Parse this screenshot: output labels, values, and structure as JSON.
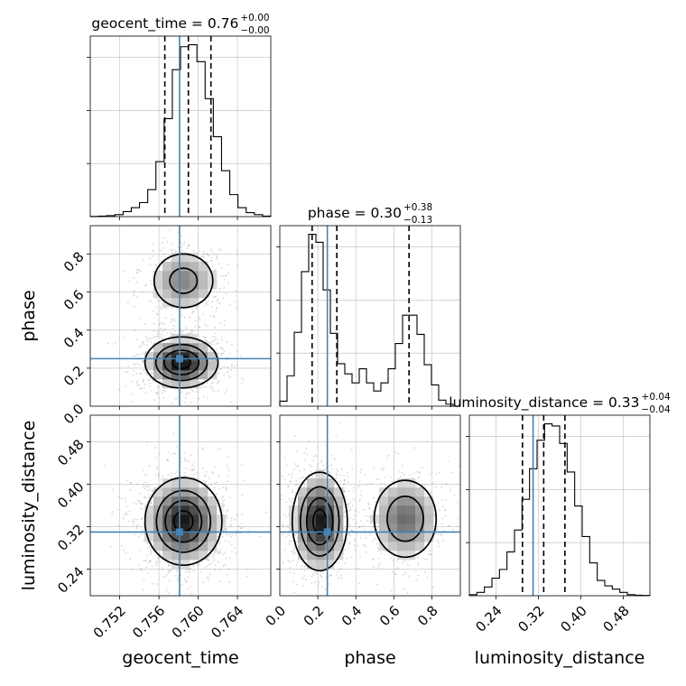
{
  "chart_data": {
    "type": "corner",
    "parameters": [
      "geocent_time",
      "phase",
      "luminosity_distance"
    ],
    "truths": {
      "geocent_time": 0.7581,
      "phase": 0.25,
      "luminosity_distance": 0.31
    },
    "histograms": [
      {
        "param": "geocent_time",
        "title_base": "geocent_time = 0.76",
        "title_sup": "+0.00",
        "title_sub": "−0.00",
        "range": [
          0.749,
          0.7674
        ],
        "quantiles": [
          0.7566,
          0.759,
          0.7613
        ],
        "counts": [
          0.2,
          0.5,
          1,
          2,
          5,
          9,
          14,
          27,
          55,
          98,
          147,
          170,
          172,
          155,
          118,
          80,
          46,
          22,
          9,
          4,
          2,
          0.5
        ]
      },
      {
        "param": "phase",
        "title_base": "phase = 0.30",
        "title_sup": "+0.38",
        "title_sub": "−0.13",
        "range": [
          0.0,
          0.95
        ],
        "quantiles": [
          0.17,
          0.3,
          0.68
        ],
        "counts": [
          5,
          30,
          73,
          133,
          170,
          162,
          115,
          72,
          42,
          32,
          23,
          37,
          23,
          15,
          23,
          37,
          62,
          90,
          90,
          71,
          41,
          21,
          6,
          2,
          0
        ]
      },
      {
        "param": "luminosity_distance",
        "title_base": "luminosity_distance = 0.33",
        "title_sup": "+0.04",
        "title_sub": "−0.04",
        "range": [
          0.19,
          0.53
        ],
        "quantiles": [
          0.29,
          0.33,
          0.37
        ],
        "counts": [
          1,
          3,
          8,
          16,
          24,
          40,
          60,
          88,
          116,
          142,
          157,
          155,
          139,
          113,
          82,
          54,
          30,
          14,
          9,
          6,
          3,
          1,
          0.5,
          0.3
        ]
      }
    ],
    "axes": {
      "geocent_time": {
        "ticks": [
          "0.752",
          "0.756",
          "0.760",
          "0.764"
        ],
        "tick_values": [
          0.752,
          0.756,
          0.76,
          0.764
        ]
      },
      "phase": {
        "ticks": [
          "0.0",
          "0.2",
          "0.4",
          "0.6",
          "0.8"
        ],
        "tick_values": [
          0.0,
          0.2,
          0.4,
          0.6,
          0.8
        ]
      },
      "luminosity_distance": {
        "ticks": [
          "0.24",
          "0.32",
          "0.40",
          "0.48"
        ],
        "tick_values": [
          0.24,
          0.32,
          0.4,
          0.48
        ]
      }
    },
    "density_2d": [
      {
        "x": "geocent_time",
        "y": "phase",
        "modes": [
          {
            "cx": 0.7583,
            "cy": 0.23,
            "sx": 0.0018,
            "sy": 0.065,
            "w": 0.68
          },
          {
            "cx": 0.7585,
            "cy": 0.66,
            "sx": 0.0018,
            "sy": 0.085,
            "w": 0.32
          }
        ]
      },
      {
        "x": "geocent_time",
        "y": "luminosity_distance",
        "modes": [
          {
            "cx": 0.7585,
            "cy": 0.33,
            "sx": 0.0019,
            "sy": 0.04,
            "w": 1.0
          }
        ]
      },
      {
        "x": "phase",
        "y": "luminosity_distance",
        "modes": [
          {
            "cx": 0.21,
            "cy": 0.33,
            "sx": 0.07,
            "sy": 0.045,
            "w": 0.62
          },
          {
            "cx": 0.66,
            "cy": 0.335,
            "sx": 0.09,
            "sy": 0.04,
            "w": 0.38
          }
        ]
      }
    ],
    "xlabels": [
      "geocent_time",
      "phase",
      "luminosity_distance"
    ],
    "ylabels": [
      "",
      "phase",
      "luminosity_distance"
    ],
    "grid": true,
    "truth_color": "#4682b4"
  }
}
